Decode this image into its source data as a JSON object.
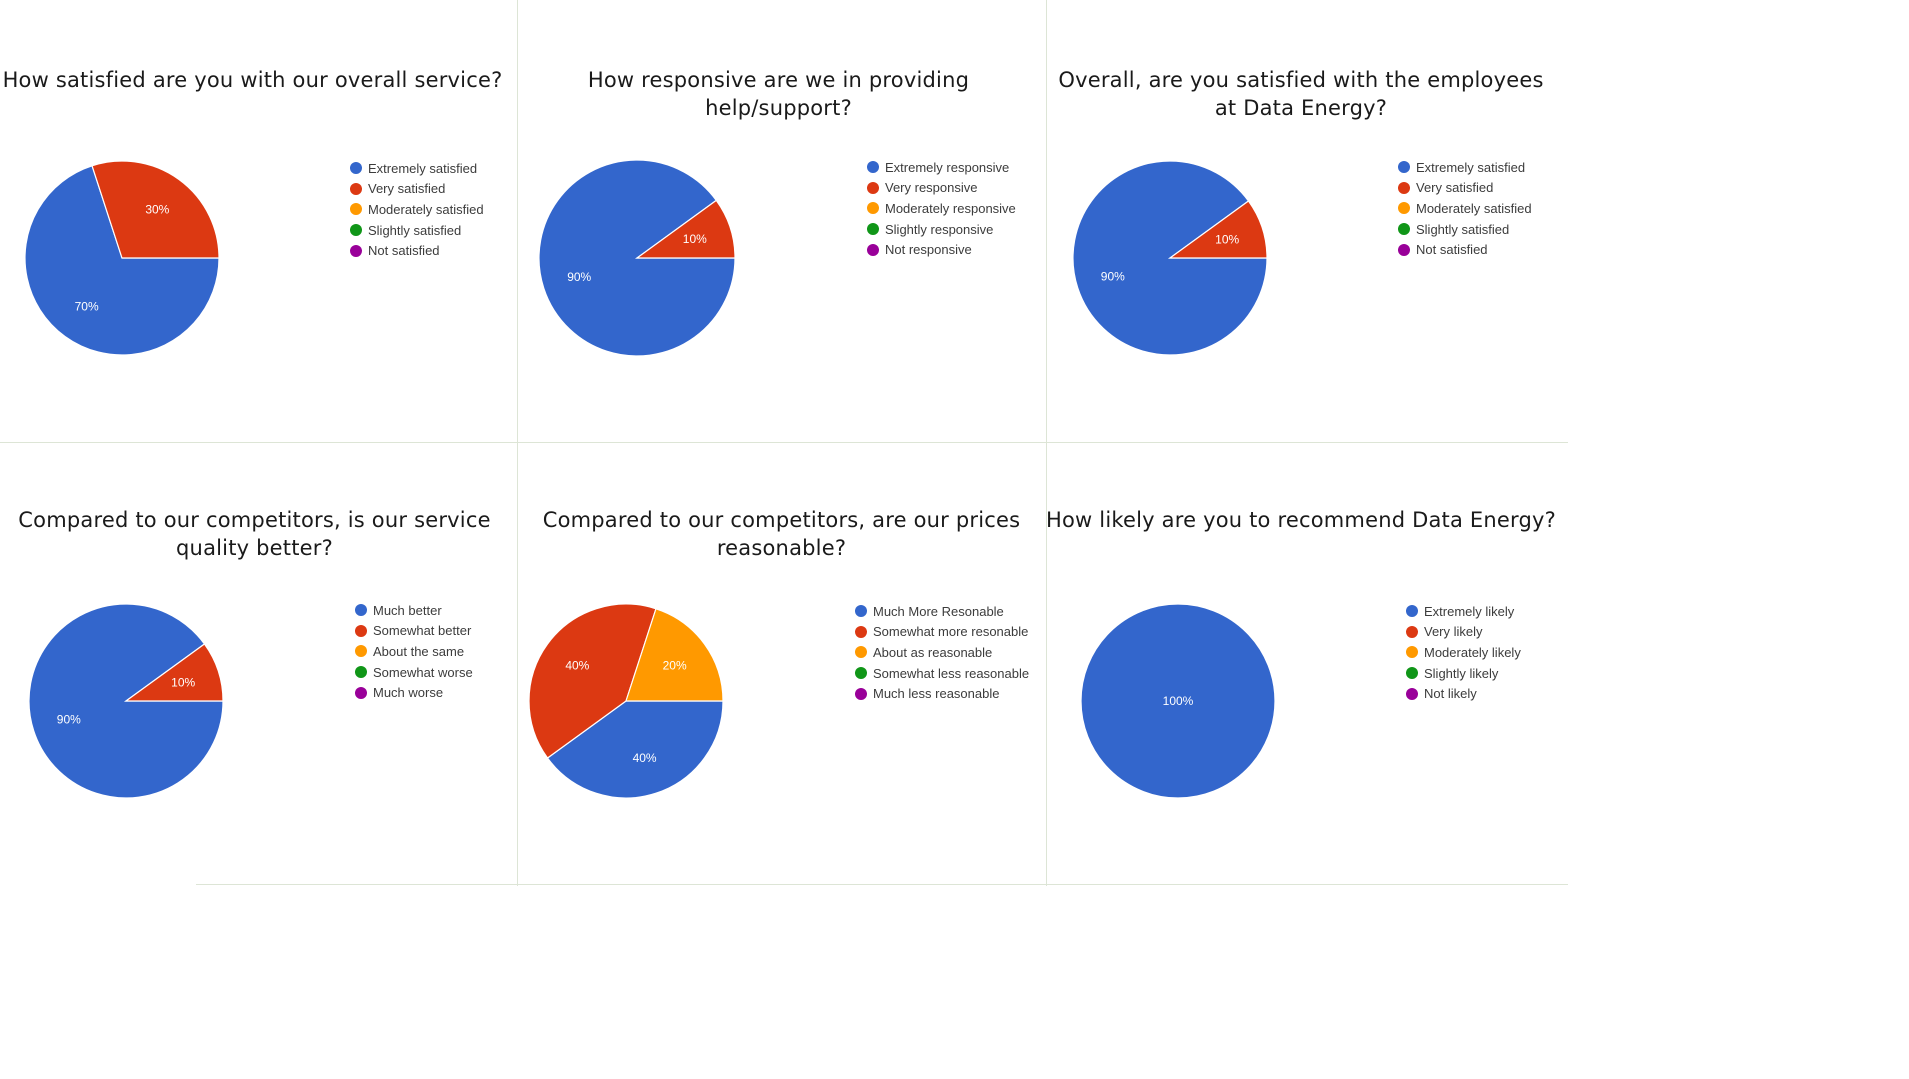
{
  "chart_data": [
    {
      "type": "pie",
      "title": "How satisfied are you with our overall service?",
      "categories": [
        "Extremely satisfied",
        "Very satisfied",
        "Moderately satisfied",
        "Slightly satisfied",
        "Not satisfied"
      ],
      "values": [
        70,
        30,
        0,
        0,
        0
      ],
      "labels": [
        "70%",
        "30%",
        "",
        "",
        ""
      ],
      "colors": [
        "#3366cc",
        "#dc3912",
        "#ff9900",
        "#109618",
        "#990099"
      ],
      "legend": "right"
    },
    {
      "type": "pie",
      "title": "How responsive are we in providing help/support?",
      "categories": [
        "Extremely responsive",
        "Very responsive",
        "Moderately responsive",
        "Slightly responsive",
        "Not responsive"
      ],
      "values": [
        90,
        10,
        0,
        0,
        0
      ],
      "labels": [
        "90%",
        "10%",
        "",
        "",
        ""
      ],
      "colors": [
        "#3366cc",
        "#dc3912",
        "#ff9900",
        "#109618",
        "#990099"
      ],
      "legend": "right"
    },
    {
      "type": "pie",
      "title": "Overall, are you satisfied with the employees at Data Energy?",
      "categories": [
        "Extremely satisfied",
        "Very satisfied",
        "Moderately satisfied",
        "Slightly satisfied",
        "Not satisfied"
      ],
      "values": [
        90,
        10,
        0,
        0,
        0
      ],
      "labels": [
        "90%",
        "10%",
        "",
        "",
        ""
      ],
      "colors": [
        "#3366cc",
        "#dc3912",
        "#ff9900",
        "#109618",
        "#990099"
      ],
      "legend": "right"
    },
    {
      "type": "pie",
      "title": "Compared to our competitors, is our service quality better?",
      "categories": [
        "Much better",
        "Somewhat better",
        "About the same",
        "Somewhat worse",
        "Much worse"
      ],
      "values": [
        90,
        10,
        0,
        0,
        0
      ],
      "labels": [
        "90%",
        "10%",
        "",
        "",
        ""
      ],
      "colors": [
        "#3366cc",
        "#dc3912",
        "#ff9900",
        "#109618",
        "#990099"
      ],
      "legend": "right"
    },
    {
      "type": "pie",
      "title": "Compared to our competitors, are our prices reasonable?",
      "categories": [
        "Much More Resonable",
        "Somewhat more resonable",
        "About as reasonable",
        "Somewhat less reasonable",
        "Much less reasonable"
      ],
      "values": [
        40,
        40,
        20,
        0,
        0
      ],
      "labels": [
        "40%",
        "40%",
        "20%",
        "",
        ""
      ],
      "colors": [
        "#3366cc",
        "#dc3912",
        "#ff9900",
        "#109618",
        "#990099"
      ],
      "legend": "right"
    },
    {
      "type": "pie",
      "title": "How likely are you to recommend Data Energy?",
      "categories": [
        "Extremely likely",
        "Very likely",
        "Moderately likely",
        "Slightly likely",
        "Not likely"
      ],
      "values": [
        100,
        0,
        0,
        0,
        0
      ],
      "labels": [
        "100%",
        "",
        "",
        "",
        ""
      ],
      "colors": [
        "#3366cc",
        "#dc3912",
        "#ff9900",
        "#109618",
        "#990099"
      ],
      "legend": "right"
    }
  ]
}
